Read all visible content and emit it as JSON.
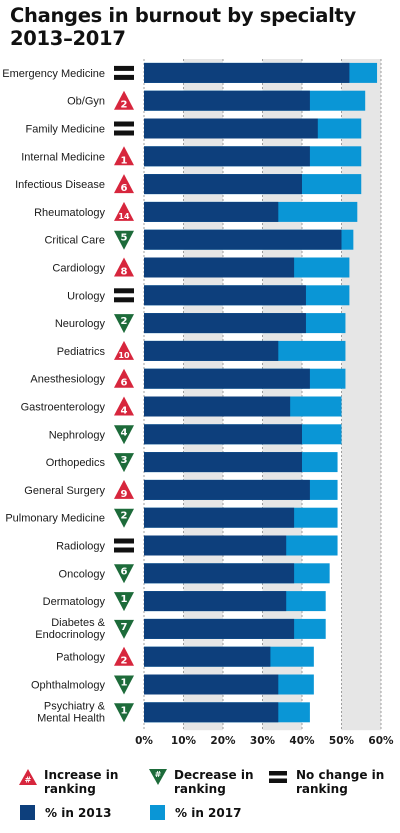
{
  "title_line_1": "Changes in burnout by specialty",
  "title_line_2": "2013–2017",
  "colors": {
    "bar_2013": "#0d3f7c",
    "bar_2017": "#0a96d6",
    "increase": "#d7263d",
    "decrease": "#1d6b3a",
    "no_change": "#111111",
    "plot_band": "#e6e6e6"
  },
  "legend": {
    "increase": "Increase in ranking",
    "decrease": "Decrease in ranking",
    "no_change": "No change in ranking",
    "increase_symbol": "#",
    "decrease_symbol": "#",
    "y2013": "% in 2013",
    "y2017": "% in 2017"
  },
  "chart_data": {
    "type": "bar",
    "orientation": "horizontal",
    "stacked": "overlay",
    "title": "Changes in burnout by specialty 2013–2017",
    "xlim": [
      0,
      60
    ],
    "x_ticks": [
      "0%",
      "10%",
      "20%",
      "30%",
      "40%",
      "50%",
      "60%"
    ],
    "grid": true,
    "legend_position": "bottom",
    "categories": [
      "Emergency Medicine",
      "Ob/Gyn",
      "Family Medicine",
      "Internal Medicine",
      "Infectious Disease",
      "Rheumatology",
      "Critical Care",
      "Cardiology",
      "Urology",
      "Neurology",
      "Pediatrics",
      "Anesthesiology",
      "Gastroenterology",
      "Nephrology",
      "Orthopedics",
      "General Surgery",
      "Pulmonary Medicine",
      "Radiology",
      "Oncology",
      "Dermatology",
      "Diabetes & Endocrinology",
      "Pathology",
      "Ophthalmology",
      "Psychiatry & Mental Health"
    ],
    "series": [
      {
        "name": "% in 2013",
        "values": [
          52,
          42,
          44,
          42,
          40,
          34,
          50,
          38,
          41,
          41,
          34,
          42,
          37,
          40,
          40,
          42,
          38,
          36,
          38,
          36,
          38,
          32,
          34,
          34
        ]
      },
      {
        "name": "% in 2017",
        "values": [
          59,
          56,
          55,
          55,
          55,
          54,
          53,
          52,
          52,
          51,
          51,
          51,
          50,
          50,
          49,
          49,
          49,
          49,
          47,
          46,
          46,
          43,
          43,
          42
        ]
      }
    ],
    "ranking_change": [
      {
        "dir": "none",
        "value": ""
      },
      {
        "dir": "up",
        "value": "2"
      },
      {
        "dir": "none",
        "value": ""
      },
      {
        "dir": "up",
        "value": "1"
      },
      {
        "dir": "up",
        "value": "6"
      },
      {
        "dir": "up",
        "value": "14"
      },
      {
        "dir": "down",
        "value": "5"
      },
      {
        "dir": "up",
        "value": "8"
      },
      {
        "dir": "none",
        "value": ""
      },
      {
        "dir": "down",
        "value": "2"
      },
      {
        "dir": "up",
        "value": "10"
      },
      {
        "dir": "up",
        "value": "6"
      },
      {
        "dir": "up",
        "value": "4"
      },
      {
        "dir": "down",
        "value": "4"
      },
      {
        "dir": "down",
        "value": "3"
      },
      {
        "dir": "up",
        "value": "9"
      },
      {
        "dir": "down",
        "value": "2"
      },
      {
        "dir": "none",
        "value": ""
      },
      {
        "dir": "down",
        "value": "6"
      },
      {
        "dir": "down",
        "value": "1"
      },
      {
        "dir": "down",
        "value": "7"
      },
      {
        "dir": "up",
        "value": "2"
      },
      {
        "dir": "down",
        "value": "1"
      },
      {
        "dir": "down",
        "value": "1"
      }
    ]
  }
}
